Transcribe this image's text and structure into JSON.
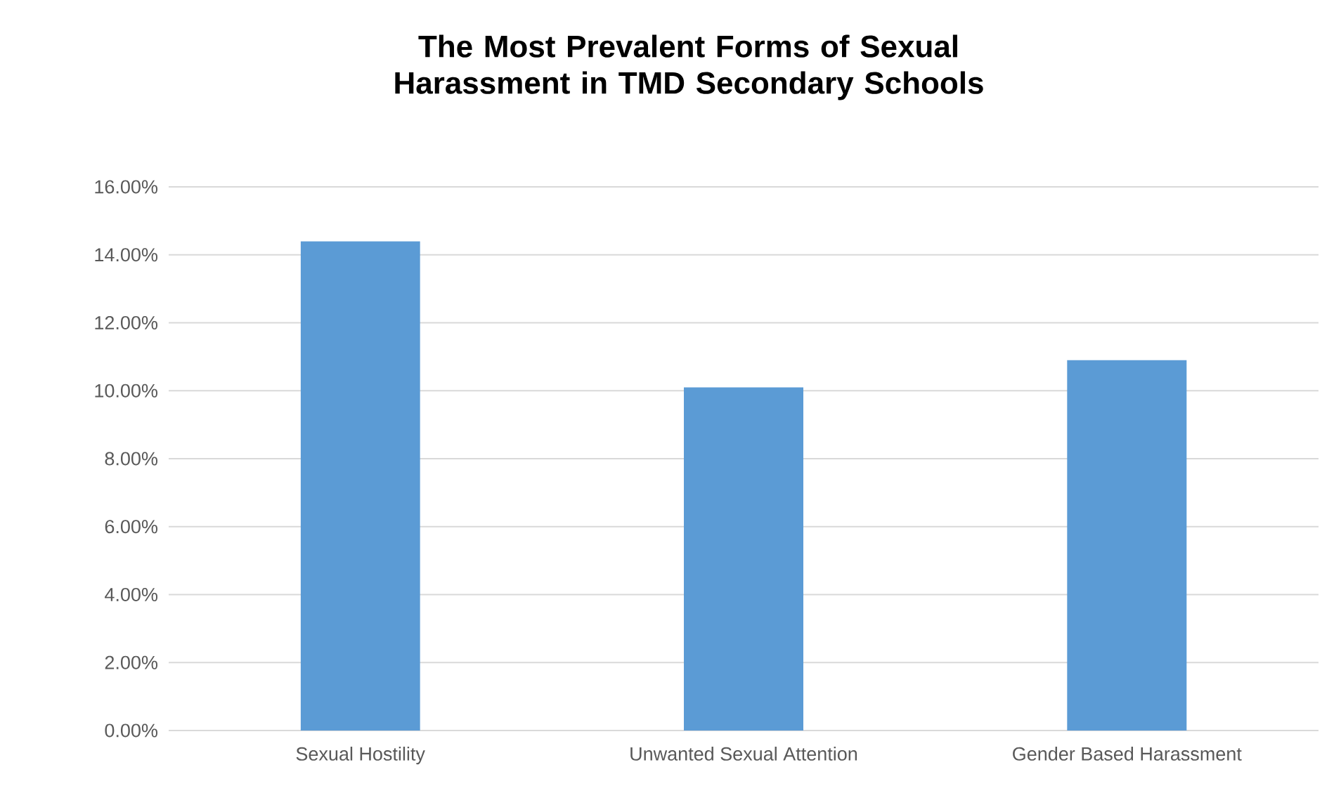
{
  "chart_data": {
    "type": "bar",
    "title": "The Most Prevalent Forms of Sexual Harassment in TMD Secondary Schools",
    "categories": [
      "Sexual Hostility",
      "Unwanted Sexual Attention",
      "Gender Based Harassment"
    ],
    "values": [
      14.4,
      10.1,
      10.9
    ],
    "color": "#5b9bd5",
    "ylim": [
      0,
      16
    ],
    "yticks": [
      {
        "value": 0,
        "label": "0.00%"
      },
      {
        "value": 2,
        "label": "2.00%"
      },
      {
        "value": 4,
        "label": "4.00%"
      },
      {
        "value": 6,
        "label": "6.00%"
      },
      {
        "value": 8,
        "label": "8.00%"
      },
      {
        "value": 10,
        "label": "10.00%"
      },
      {
        "value": 12,
        "label": "12.00%"
      },
      {
        "value": 14,
        "label": "14.00%"
      },
      {
        "value": 16,
        "label": "16.00%"
      }
    ],
    "grid": "y"
  }
}
